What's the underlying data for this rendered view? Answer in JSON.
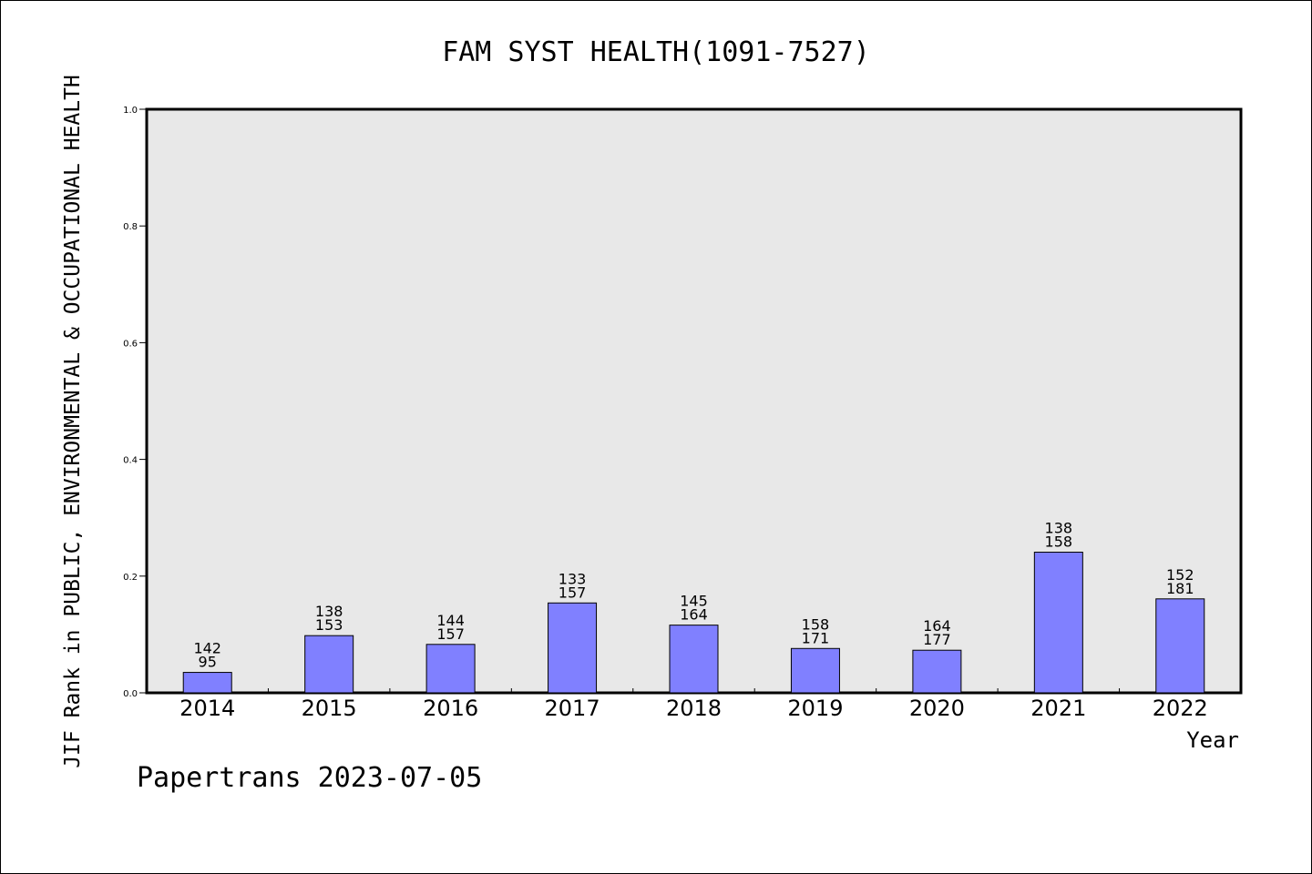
{
  "chart_data": {
    "type": "bar",
    "title": "FAM SYST HEALTH(1091-7527)",
    "xlabel": "Year",
    "ylabel": "JIF Rank in PUBLIC, ENVIRONMENTAL & OCCUPATIONAL HEALTH",
    "categories": [
      "2014",
      "2015",
      "2016",
      "2017",
      "2018",
      "2019",
      "2020",
      "2021",
      "2022"
    ],
    "values": [
      0.035,
      0.098,
      0.083,
      0.154,
      0.116,
      0.076,
      0.073,
      0.241,
      0.161
    ],
    "label_top": [
      "142",
      "138",
      "144",
      "133",
      "145",
      "158",
      "164",
      "138",
      "152"
    ],
    "label_bottom": [
      "95",
      "153",
      "157",
      "157",
      "164",
      "171",
      "177",
      "158",
      "181"
    ],
    "ylim": [
      0,
      1.0
    ],
    "yticks": [
      "0.0",
      "0.2",
      "0.4",
      "0.6",
      "0.8",
      "1.0"
    ],
    "grid": false,
    "colors": {
      "bar": "#8080ff",
      "plot_bg": "#e8e8e8"
    }
  },
  "footer": {
    "credit": "Papertrans 2023-07-05"
  }
}
